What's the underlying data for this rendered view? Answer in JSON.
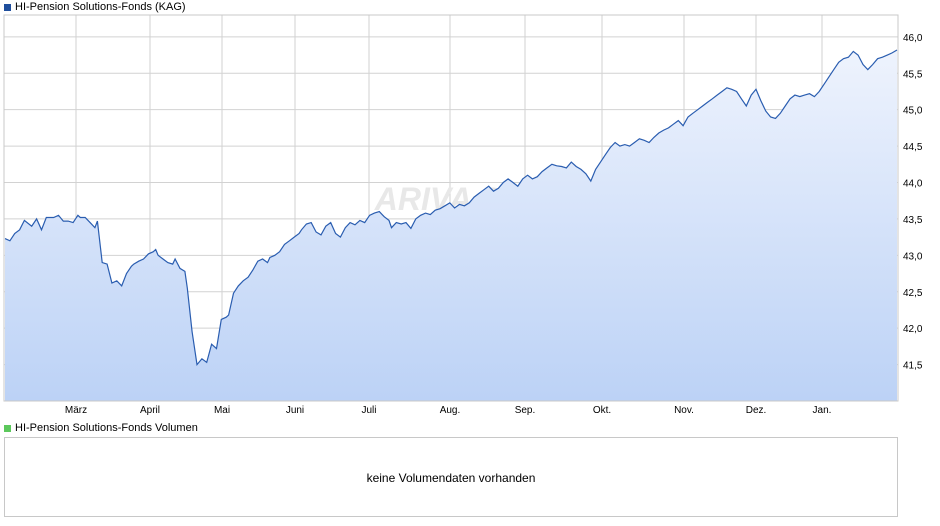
{
  "price_legend": {
    "label": "HI-Pension Solutions-Fonds (KAG)",
    "color": "#1f4e9c"
  },
  "volume_legend": {
    "label": "HI-Pension Solutions-Fonds Volumen",
    "color": "#5cc85c"
  },
  "volume_panel": {
    "message": "keine Volumendaten vorhanden"
  },
  "watermark": "ARIVA.DE",
  "colors": {
    "line": "#2a5db0",
    "fill_top": "#eef3fd",
    "fill_bottom": "#bcd2f6",
    "grid": "#d2d2d2",
    "border": "#c8c8c8"
  },
  "chart_data": {
    "type": "area",
    "title": "",
    "xlabel": "",
    "ylabel": "",
    "ylim": [
      41.0,
      46.3
    ],
    "yticks": [
      "41,5",
      "42,0",
      "42,5",
      "43,0",
      "43,5",
      "44,0",
      "44,5",
      "45,0",
      "45,5",
      "46,0"
    ],
    "ytick_values": [
      41.5,
      42.0,
      42.5,
      43.0,
      43.5,
      44.0,
      44.5,
      45.0,
      45.5,
      46.0
    ],
    "xticks": [
      "März",
      "April",
      "Mai",
      "Juni",
      "Juli",
      "Aug.",
      "Sep.",
      "Okt.",
      "Nov.",
      "Dez.",
      "Jan."
    ],
    "grid": true,
    "series": [
      {
        "name": "HI-Pension Solutions-Fonds (KAG)",
        "x": [
          0,
          2,
          4,
          6,
          8,
          11,
          13,
          15,
          17,
          20,
          22,
          24,
          26,
          28,
          30,
          31,
          33,
          35,
          37,
          38,
          40,
          42,
          44,
          46,
          48,
          50,
          52,
          53,
          55,
          57,
          59,
          61,
          62,
          63,
          65,
          67,
          69,
          70,
          72,
          74,
          75,
          77,
          79,
          81,
          83,
          85,
          87,
          88,
          89,
          91,
          92,
          94,
          96,
          98,
          100,
          102,
          104,
          106,
          108,
          109,
          111,
          113,
          115,
          117,
          119,
          121,
          122,
          124,
          126,
          128,
          130,
          132,
          134,
          136,
          138,
          140,
          142,
          144,
          146,
          148,
          150,
          152,
          154,
          156,
          158,
          159,
          161,
          163,
          165,
          167,
          169,
          171,
          173,
          175,
          177,
          179,
          181,
          183,
          185,
          187,
          189,
          191,
          193,
          195,
          197,
          199,
          201,
          203,
          205,
          207,
          209,
          211,
          213,
          215,
          217,
          219,
          221,
          223,
          225,
          227,
          229,
          231,
          233,
          235,
          237,
          239,
          241,
          243,
          245,
          247,
          249,
          251,
          253,
          255,
          257,
          259,
          261,
          263,
          265,
          267,
          269,
          271,
          273,
          275,
          277,
          279,
          281,
          283,
          285,
          287,
          289,
          291,
          293,
          295,
          297,
          299,
          301,
          303,
          305,
          307,
          309,
          311,
          313,
          315,
          317,
          319,
          321,
          323,
          325,
          327,
          329,
          331,
          333,
          335,
          337,
          339,
          341,
          343,
          345,
          347,
          349,
          351,
          353,
          355,
          357,
          359,
          361,
          363,
          365,
          367
        ],
        "values": [
          43.23,
          43.2,
          43.3,
          43.35,
          43.48,
          43.4,
          43.5,
          43.35,
          43.52,
          43.52,
          43.55,
          43.47,
          43.47,
          43.45,
          43.55,
          43.52,
          43.52,
          43.45,
          43.38,
          43.47,
          42.9,
          42.88,
          42.62,
          42.65,
          42.58,
          42.75,
          42.85,
          42.88,
          42.92,
          42.95,
          43.02,
          43.05,
          43.08,
          43.0,
          42.95,
          42.9,
          42.88,
          42.95,
          42.82,
          42.78,
          42.55,
          41.95,
          41.5,
          41.58,
          41.53,
          41.78,
          41.72,
          41.92,
          42.12,
          42.15,
          42.18,
          42.48,
          42.58,
          42.65,
          42.7,
          42.8,
          42.92,
          42.95,
          42.9,
          42.97,
          43.0,
          43.05,
          43.15,
          43.2,
          43.25,
          43.3,
          43.35,
          43.43,
          43.45,
          43.32,
          43.28,
          43.4,
          43.45,
          43.3,
          43.25,
          43.38,
          43.45,
          43.42,
          43.48,
          43.45,
          43.55,
          43.58,
          43.6,
          43.53,
          43.48,
          43.38,
          43.45,
          43.43,
          43.45,
          43.37,
          43.5,
          43.55,
          43.58,
          43.56,
          43.62,
          43.64,
          43.68,
          43.72,
          43.65,
          43.7,
          43.68,
          43.72,
          43.8,
          43.85,
          43.9,
          43.95,
          43.88,
          43.92,
          44.0,
          44.05,
          44.0,
          43.95,
          44.05,
          44.1,
          44.05,
          44.08,
          44.15,
          44.2,
          44.25,
          44.23,
          44.22,
          44.2,
          44.28,
          44.22,
          44.18,
          44.12,
          44.02,
          44.18,
          44.28,
          44.38,
          44.48,
          44.55,
          44.5,
          44.52,
          44.5,
          44.55,
          44.6,
          44.58,
          44.55,
          44.62,
          44.68,
          44.72,
          44.75,
          44.8,
          44.85,
          44.78,
          44.9,
          44.95,
          45.0,
          45.05,
          45.1,
          45.15,
          45.2,
          45.25,
          45.3,
          45.28,
          45.25,
          45.15,
          45.05,
          45.2,
          45.28,
          45.12,
          44.98,
          44.9,
          44.88,
          44.95,
          45.05,
          45.15,
          45.2,
          45.18,
          45.2,
          45.22,
          45.18,
          45.25,
          45.35,
          45.45,
          45.55,
          45.65,
          45.7,
          45.72,
          45.8,
          45.75,
          45.62,
          45.55,
          45.62,
          45.7,
          45.72,
          45.75,
          45.78,
          45.82
        ]
      }
    ]
  }
}
